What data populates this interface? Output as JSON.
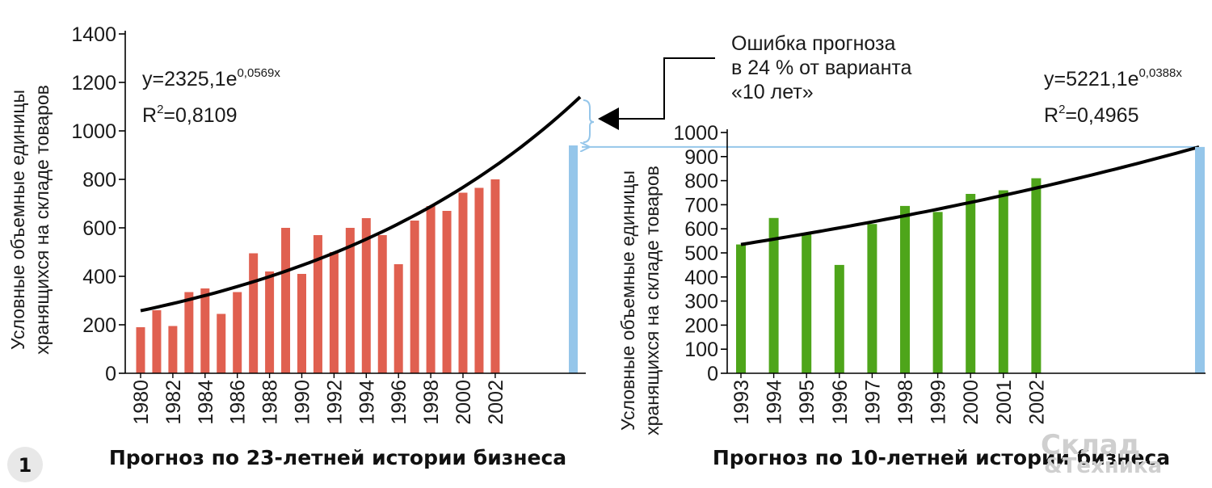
{
  "colors": {
    "bar_left": "#e06050",
    "bar_right": "#4ea51a",
    "trend": "#000000",
    "forecast": "#95c6ea",
    "badge": "#e8e8e8"
  },
  "badge": "1",
  "watermark": {
    "line1": "Склад",
    "line2": "&Техника"
  },
  "annotation": {
    "lines": [
      "Ошибка прогноза",
      "в 24 % от варианта",
      "«10 лет»"
    ]
  },
  "chart_data": [
    {
      "type": "bar",
      "title": "Прогноз по 23-летней истории бизнеса",
      "ylabel_lines": [
        "Условные объемные единицы",
        "хранящихся на складе товаров"
      ],
      "ylim": [
        0,
        1400
      ],
      "yticks": [
        0,
        200,
        400,
        600,
        800,
        1000,
        1200,
        1400
      ],
      "categories": [
        "1980",
        "1981",
        "1982",
        "1983",
        "1984",
        "1985",
        "1986",
        "1987",
        "1988",
        "1989",
        "1990",
        "1991",
        "1992",
        "1993",
        "1994",
        "1995",
        "1996",
        "1997",
        "1998",
        "1999",
        "2000",
        "2001",
        "2002"
      ],
      "xtick_labels": [
        "1980",
        "1982",
        "1984",
        "1986",
        "1988",
        "1990",
        "1992",
        "1994",
        "1996",
        "1998",
        "2000",
        "2002"
      ],
      "values": [
        190,
        260,
        195,
        335,
        350,
        245,
        335,
        495,
        420,
        600,
        410,
        570,
        500,
        600,
        640,
        570,
        450,
        630,
        690,
        670,
        745,
        765,
        800
      ],
      "trend": {
        "equation_prefix": "y=2325,1e",
        "equation_exponent": "0,0569x",
        "r2_prefix": "R",
        "r2_sup": "2",
        "r2_value": "=0,8109",
        "start": 258,
        "end": 1140
      },
      "forecast_value": 940
    },
    {
      "type": "bar",
      "title": "Прогноз по 10-летней истории бизнеса",
      "ylabel_lines": [
        "Условные объемные единицы",
        "хранящихся на складе товаров"
      ],
      "ylim": [
        0,
        1000
      ],
      "yticks": [
        0,
        100,
        200,
        300,
        400,
        500,
        600,
        700,
        800,
        900,
        1000
      ],
      "categories": [
        "1993",
        "1994",
        "1995",
        "1996",
        "1997",
        "1998",
        "1999",
        "2000",
        "2001",
        "2002"
      ],
      "values": [
        535,
        645,
        580,
        450,
        620,
        695,
        670,
        745,
        760,
        810
      ],
      "trend": {
        "equation_prefix": "y=5221,1e",
        "equation_exponent": "0,0388x",
        "r2_prefix": "R",
        "r2_sup": "2",
        "r2_value": "=0,4965",
        "start": 535,
        "end": 940
      },
      "forecast_value": 940
    }
  ]
}
